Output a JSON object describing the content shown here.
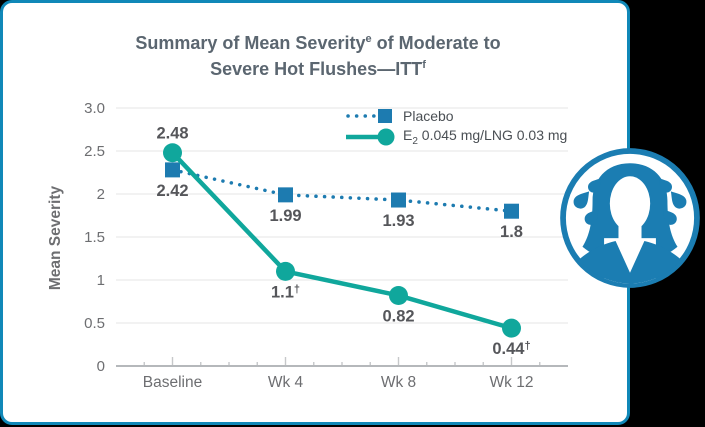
{
  "page": {
    "background": "#000000"
  },
  "card": {
    "background": "#ffffff",
    "border_color": "#1088b8"
  },
  "title": {
    "part1": "Summary of Mean Severity",
    "sup1": "e",
    "part2": " of Moderate to",
    "part3": "Severe Hot Flushes—ITT",
    "sup2": "f"
  },
  "legend": {
    "position": "top-right",
    "items": [
      {
        "id": "placebo",
        "label": "Placebo",
        "color": "#1d7bb0",
        "marker": "square",
        "line": "dotted"
      },
      {
        "id": "e2-lng",
        "label_pre": "E",
        "label_sub": "2",
        "label_post": " 0.045 mg/LNG 0.03 mg",
        "color": "#10a79c",
        "marker": "circle",
        "line": "solid"
      }
    ]
  },
  "icon": {
    "name": "sweating-woman-icon",
    "color": "#1b7db2"
  },
  "chart_data": {
    "type": "line",
    "title": "Summary of Mean Severity of Moderate to Severe Hot Flushes—ITT",
    "categories": [
      "Baseline",
      "Wk 4",
      "Wk 8",
      "Wk 12"
    ],
    "xlabel": "",
    "ylabel": "Mean Severity",
    "ylim": [
      0,
      3
    ],
    "ytick_values": [
      0,
      0.5,
      1,
      1.5,
      2,
      2.5,
      3
    ],
    "ytick_labels": [
      "0",
      "0.5",
      "1",
      "1.5",
      "2",
      "2.5",
      "3.0"
    ],
    "grid": true,
    "legend_position": "top-right",
    "series": [
      {
        "id": "placebo",
        "name": "Placebo",
        "color": "#1d7bb0",
        "line_style": "dotted",
        "marker": "square",
        "values": [
          2.42,
          1.99,
          1.93,
          1.8
        ],
        "labels": [
          "2.42",
          "1.99",
          "1.93",
          "1.8"
        ],
        "label_sups": [
          "",
          "",
          "",
          ""
        ],
        "label_positions": [
          "below",
          "below",
          "below",
          "below"
        ],
        "marker_offset_y": [
          12,
          0,
          0,
          0
        ]
      },
      {
        "id": "e2-lng",
        "name": "E2 0.045 mg/LNG 0.03 mg",
        "color": "#10a79c",
        "line_style": "solid",
        "marker": "circle",
        "values": [
          2.48,
          1.1,
          0.82,
          0.44
        ],
        "labels": [
          "2.48",
          "1.1",
          "0.82",
          "0.44"
        ],
        "label_sups": [
          "",
          "†",
          "",
          "†"
        ],
        "label_positions": [
          "above",
          "below",
          "below",
          "below"
        ],
        "marker_offset_y": [
          0,
          0,
          0,
          0
        ]
      }
    ],
    "colors": {
      "data_label": "#55565a",
      "axis_line": "#b5b8bb",
      "gridline": "#e4e5e6",
      "tick_text": "#6d6e71",
      "tick_mark": "#c6c8ca"
    }
  }
}
